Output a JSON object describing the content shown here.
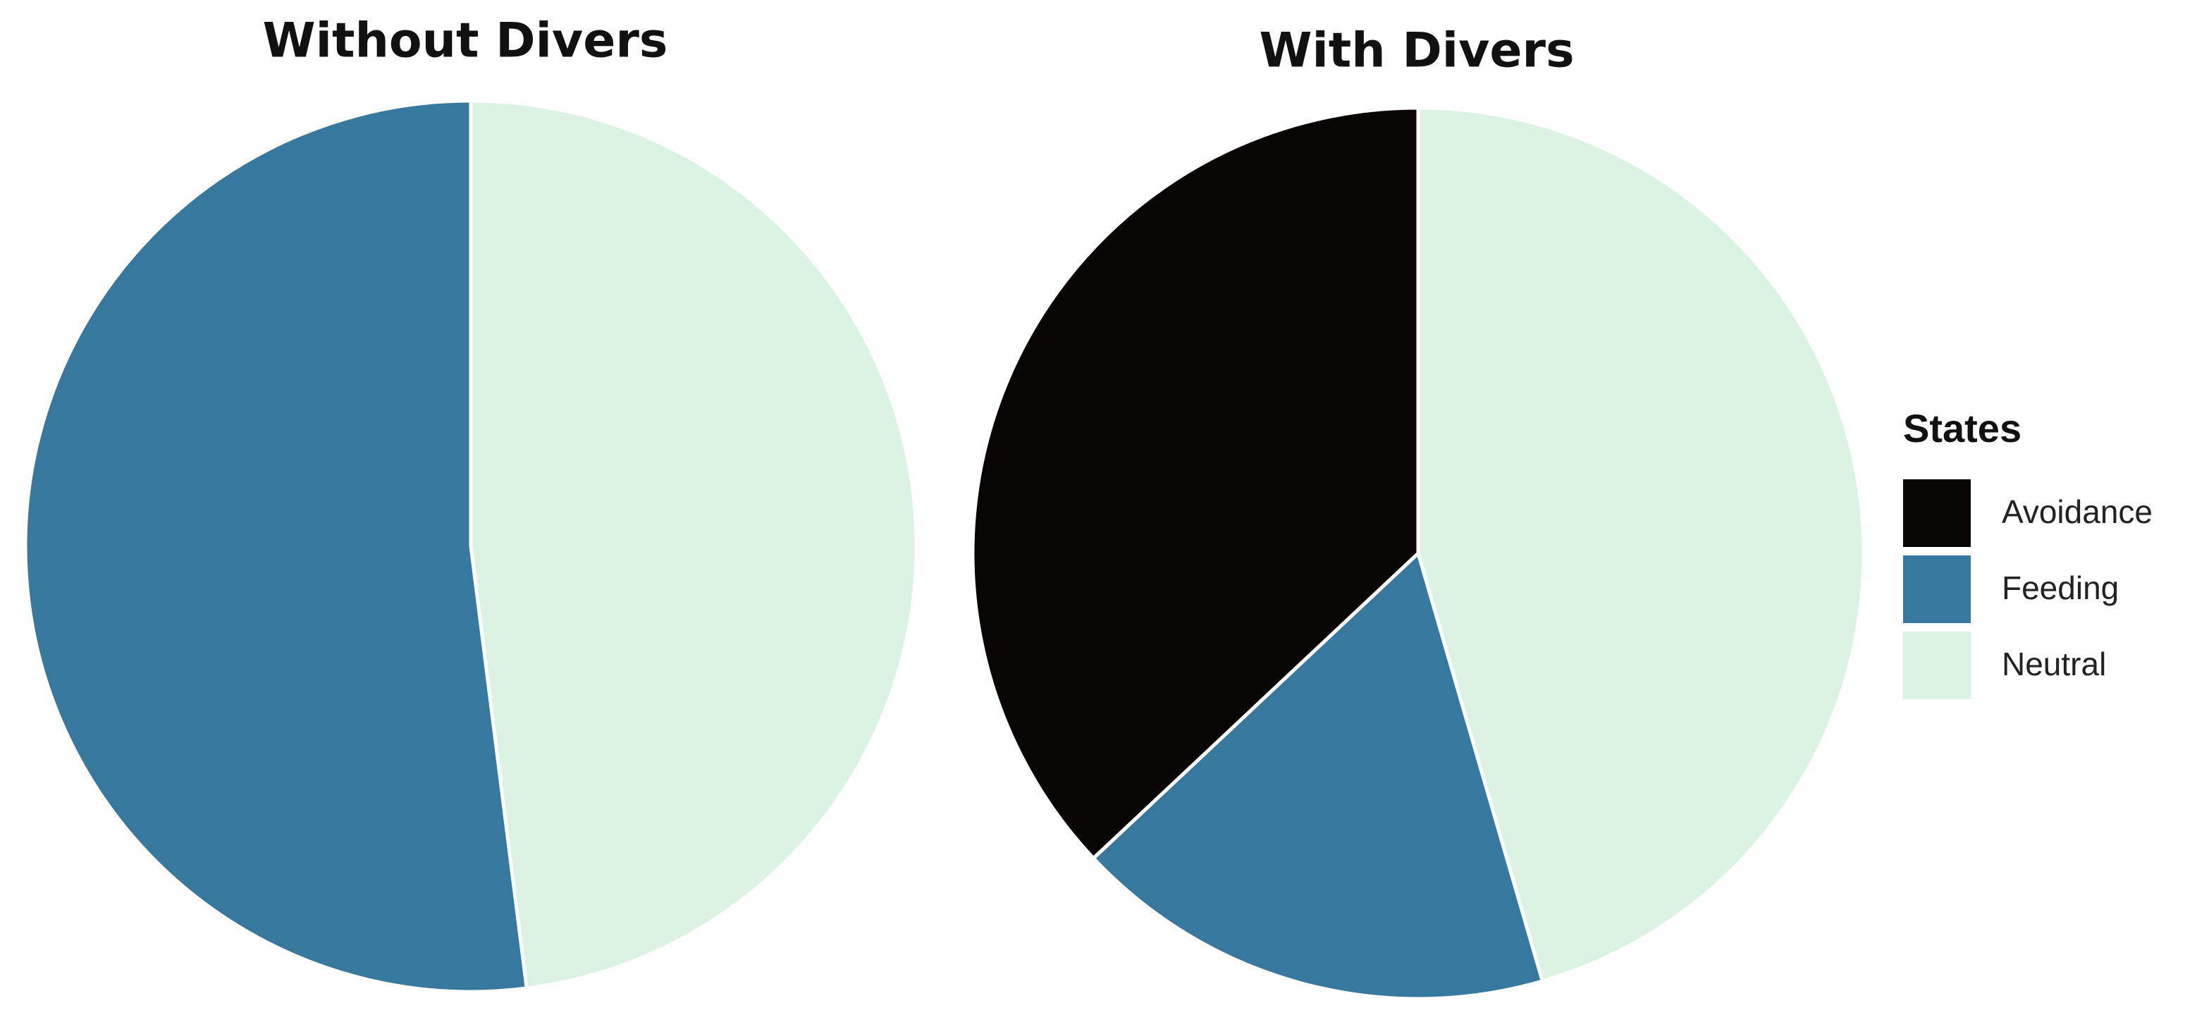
{
  "chart_data": [
    {
      "type": "pie",
      "title": "Without Divers",
      "categories": [
        "Feeding",
        "Neutral"
      ],
      "values": [
        52,
        48
      ]
    },
    {
      "type": "pie",
      "title": "With Divers",
      "categories": [
        "Avoidance",
        "Feeding",
        "Neutral"
      ],
      "values": [
        37,
        17.5,
        45.5
      ]
    }
  ],
  "legend": {
    "title": "States",
    "entries": [
      "Avoidance",
      "Feeding",
      "Neutral"
    ],
    "colors": [
      "#0a0505",
      "#37789e",
      "#dcf2e3"
    ]
  }
}
